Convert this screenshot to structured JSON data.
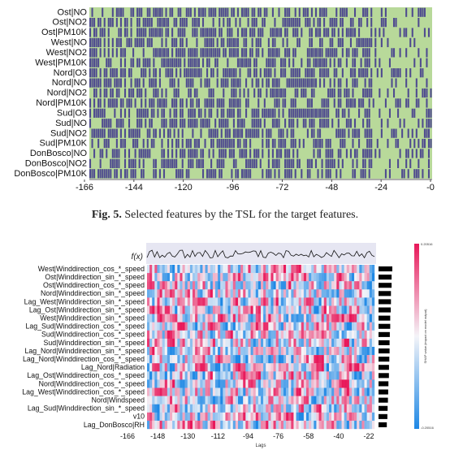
{
  "figure": {
    "caption_label": "Fig. 5.",
    "caption_text": "Selected features by the TSL for the target features."
  },
  "chart_data": [
    {
      "type": "heatmap",
      "rows": [
        "Ost|NO",
        "Ost|NO2",
        "Ost|PM10K",
        "West|NO",
        "West|NO2",
        "West|PM10K",
        "Nord|O3",
        "Nord|NO",
        "Nord|NO2",
        "Nord|PM10K",
        "Sud|O3",
        "Sud|NO",
        "Sud|NO2",
        "Sud|PM10K",
        "DonBosco|NO",
        "DonBosco|NO2",
        "DonBosco|PM10K"
      ],
      "x_ticks": [
        "-166",
        "-144",
        "-120",
        "-96",
        "-72",
        "-48",
        "-24",
        "-0"
      ],
      "n_lags": 167,
      "colors": {
        "selected": "#4f4b8f",
        "not_selected": "#b8d99a"
      }
    },
    {
      "type": "heatmap",
      "rows": [
        "West|Winddirection_cos_*_speed",
        "Ost|Winddirection_sin_*_speed",
        "Ost|Winddirection_cos_*_speed",
        "Nord|Winddirection_sin_*_speed",
        "Lag_West|Winddirection_sin_*_speed",
        "Lag_Ost|Winddirection_sin_*_speed",
        "West|Winddirection_sin_*_speed",
        "Lag_Sud|Winddirection_cos_*_speed",
        "Sud|Winddirection_cos_*_speed",
        "Sud|Winddirection_sin_*_speed",
        "Lag_Nord|Winddirection_sin_*_speed",
        "Lag_Nord|Winddirection_cos_*_speed",
        "Lag_Nord|Radiation",
        "Lag_Ost|Winddirection_cos_*_speed",
        "Nord|Winddirection_cos_*_speed",
        "Lag_West|Winddirection_cos_*_speed",
        "Nord|Windspeed",
        "Lag_Sud|Winddirection_sin_*_speed",
        "v10",
        "Lag_DonBosco|RH"
      ],
      "x_ticks": [
        "-166",
        "-148",
        "-130",
        "-112",
        "-94",
        "-76",
        "-58",
        "-40",
        "-22"
      ],
      "xlabel": "Lags",
      "fx_label": "f(x)",
      "colorbar": {
        "label": "SHAP value (impact on model output)",
        "max_label": "0.20516",
        "min_label": "-0.20516"
      },
      "colors": {
        "positive": "#e8185a",
        "negative": "#1e88e5",
        "neutral": "#f4f4f8"
      }
    }
  ]
}
